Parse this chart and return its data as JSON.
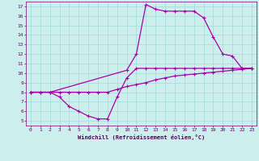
{
  "xlabel": "Windchill (Refroidissement éolien,°C)",
  "background_color": "#cceeed",
  "line_color": "#aa00aa",
  "grid_color": "#aadddd",
  "xlim": [
    -0.5,
    23.5
  ],
  "ylim": [
    4.5,
    17.5
  ],
  "xticks": [
    0,
    1,
    2,
    3,
    4,
    5,
    6,
    7,
    8,
    9,
    10,
    11,
    12,
    13,
    14,
    15,
    16,
    17,
    18,
    19,
    20,
    21,
    22,
    23
  ],
  "yticks": [
    5,
    6,
    7,
    8,
    9,
    10,
    11,
    12,
    13,
    14,
    15,
    16,
    17
  ],
  "line1_x": [
    0,
    1,
    2,
    3,
    4,
    5,
    6,
    7,
    8,
    9,
    10,
    11,
    12,
    13,
    14,
    15,
    16,
    17,
    18,
    19,
    20,
    21,
    22,
    23
  ],
  "line1_y": [
    8.0,
    8.0,
    8.0,
    7.5,
    6.5,
    6.0,
    5.5,
    5.2,
    5.2,
    7.5,
    9.5,
    10.5,
    10.5,
    10.5,
    10.5,
    10.5,
    10.5,
    10.5,
    10.5,
    10.5,
    10.5,
    10.5,
    10.5,
    10.5
  ],
  "line2_x": [
    0,
    1,
    2,
    3,
    4,
    5,
    6,
    7,
    8,
    9,
    10,
    11,
    12,
    13,
    14,
    15,
    16,
    17,
    18,
    19,
    20,
    21,
    22,
    23
  ],
  "line2_y": [
    8.0,
    8.0,
    8.0,
    8.0,
    8.0,
    8.0,
    8.0,
    8.0,
    8.0,
    8.3,
    8.6,
    8.8,
    9.0,
    9.3,
    9.5,
    9.7,
    9.8,
    9.9,
    10.0,
    10.1,
    10.2,
    10.3,
    10.4,
    10.5
  ],
  "line3_x": [
    0,
    1,
    2,
    10,
    11,
    12,
    13,
    14,
    15,
    16,
    17,
    18,
    19,
    20,
    21,
    22,
    23
  ],
  "line3_y": [
    8.0,
    8.0,
    8.0,
    10.3,
    12.0,
    17.2,
    16.7,
    16.5,
    16.5,
    16.5,
    16.5,
    15.8,
    13.8,
    12.0,
    11.8,
    10.5,
    10.5
  ]
}
